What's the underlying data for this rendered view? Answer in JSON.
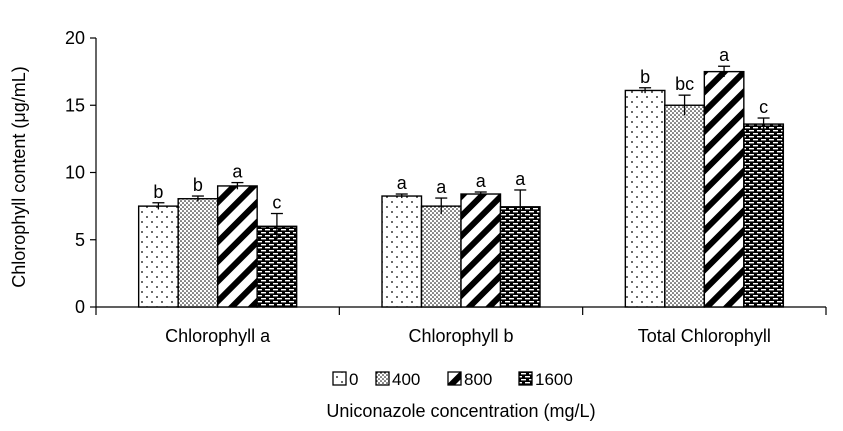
{
  "chart_data": {
    "type": "bar",
    "categories": [
      "Chlorophyll a",
      "Chlorophyll b",
      "Total Chlorophyll"
    ],
    "series": [
      {
        "name": "0",
        "pattern": "dots-sparse",
        "values": [
          7.5,
          8.25,
          16.1
        ],
        "errors": [
          0.25,
          0.15,
          0.2
        ],
        "sig": [
          "b",
          "a",
          "b"
        ]
      },
      {
        "name": "400",
        "pattern": "dots-dense",
        "values": [
          8.05,
          7.5,
          15.0
        ],
        "errors": [
          0.2,
          0.6,
          0.75
        ],
        "sig": [
          "b",
          "a",
          "bc"
        ]
      },
      {
        "name": "800",
        "pattern": "diagonal",
        "values": [
          9.0,
          8.4,
          17.5
        ],
        "errors": [
          0.25,
          0.15,
          0.4
        ],
        "sig": [
          "a",
          "a",
          "a"
        ]
      },
      {
        "name": "1600",
        "pattern": "dashes",
        "values": [
          6.0,
          7.45,
          13.6
        ],
        "errors": [
          0.95,
          1.25,
          0.45
        ],
        "sig": [
          "c",
          "a",
          "c"
        ]
      }
    ],
    "xlabel": "Uniconazole concentration (mg/L)",
    "ylabel": "Chlorophyll content (μg/mL)",
    "ylim": [
      0,
      20
    ],
    "yticks": [
      0,
      5,
      10,
      15,
      20
    ],
    "grid": false,
    "legend_position": "bottom"
  }
}
